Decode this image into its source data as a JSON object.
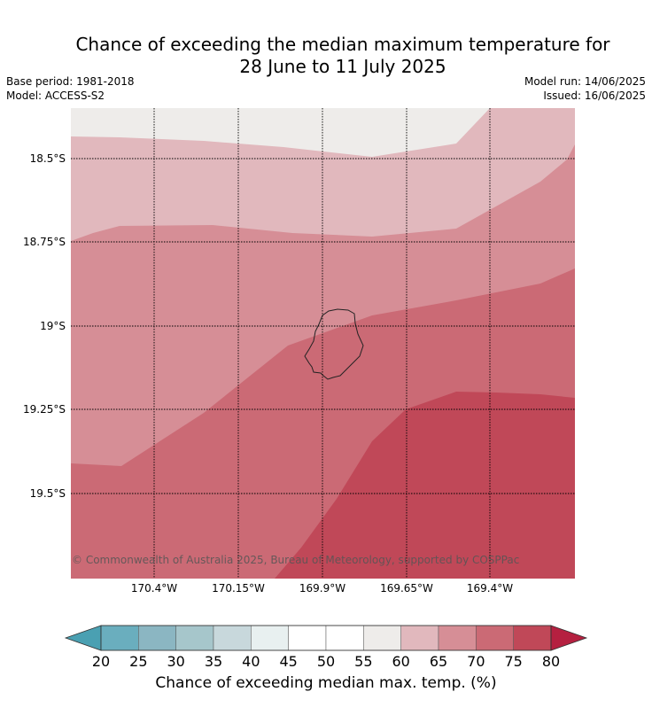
{
  "title_line1": "Chance of exceeding the median maximum temperature for",
  "title_line2": "28 June to 11 July 2025",
  "meta": {
    "base_period": "Base period: 1981-2018",
    "model": "Model: ACCESS-S2",
    "model_run": "Model run: 14/06/2025",
    "issued": "Issued: 16/06/2025"
  },
  "map": {
    "lat_labels": [
      "18.5°S",
      "18.75°S",
      "19°S",
      "19.25°S",
      "19.5°S"
    ],
    "lon_labels": [
      "170.4°W",
      "170.15°W",
      "169.9°W",
      "169.65°W",
      "169.4°W"
    ],
    "copyright": "© Commonwealth of Australia 2025, Bureau of Meteorology, supported by COSPPac"
  },
  "colorbar": {
    "ticks": [
      "20",
      "25",
      "30",
      "35",
      "40",
      "45",
      "50",
      "55",
      "60",
      "65",
      "70",
      "75",
      "80"
    ],
    "colors": [
      "#6aaebe",
      "#8bb6c2",
      "#a6c6cb",
      "#c8d8dc",
      "#e8f0f0",
      "#ffffff",
      "#ffffff",
      "#eeecea",
      "#e1b8bd",
      "#d68e96",
      "#cb6a75",
      "#c04858"
    ],
    "under_color": "#4aa0b2",
    "over_color": "#b52040",
    "label": "Chance of exceeding median max. temp. (%)"
  },
  "zone_colors": {
    "c55_60": "#eeecea",
    "c60_65": "#e1b8bd",
    "c65_70": "#d68e96",
    "c70_75": "#cb6a75",
    "c75_80": "#c04858"
  }
}
